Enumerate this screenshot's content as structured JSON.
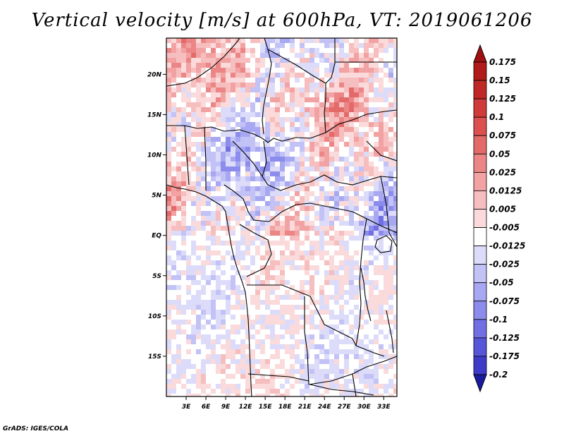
{
  "title": "Vertical velocity [m/s] at 600hPa, VT: 2019061206",
  "credit": "GrADS: IGES/COLA",
  "map": {
    "lon_range": [
      0,
      35
    ],
    "lat_range": [
      -20,
      24.5
    ],
    "lat_ticks": [
      {
        "value": 20,
        "label": "20N"
      },
      {
        "value": 15,
        "label": "15N"
      },
      {
        "value": 10,
        "label": "10N"
      },
      {
        "value": 5,
        "label": "5N"
      },
      {
        "value": 0,
        "label": "EQ"
      },
      {
        "value": -5,
        "label": "5S"
      },
      {
        "value": -10,
        "label": "10S"
      },
      {
        "value": -15,
        "label": "15S"
      }
    ],
    "lon_ticks": [
      {
        "value": 3,
        "label": "3E"
      },
      {
        "value": 6,
        "label": "6E"
      },
      {
        "value": 9,
        "label": "9E"
      },
      {
        "value": 12,
        "label": "12E"
      },
      {
        "value": 15,
        "label": "15E"
      },
      {
        "value": 18,
        "label": "18E"
      },
      {
        "value": 21,
        "label": "21E"
      },
      {
        "value": 24,
        "label": "24E"
      },
      {
        "value": 27,
        "label": "27E"
      },
      {
        "value": 30,
        "label": "30E"
      },
      {
        "value": 33,
        "label": "33E"
      }
    ]
  },
  "colorbar": {
    "levels": [
      {
        "label": "0.175",
        "color": "#b01a1a"
      },
      {
        "label": "0.15",
        "color": "#c02828"
      },
      {
        "label": "0.125",
        "color": "#d03a3a"
      },
      {
        "label": "0.1",
        "color": "#dc5050"
      },
      {
        "label": "0.075",
        "color": "#e46a6a"
      },
      {
        "label": "0.05",
        "color": "#ec8686"
      },
      {
        "label": "0.025",
        "color": "#f2a2a2"
      },
      {
        "label": "0.0125",
        "color": "#f6bebe"
      },
      {
        "label": "0.005",
        "color": "#fadada"
      },
      {
        "label": "-0.005",
        "color": "#ffffff"
      },
      {
        "label": "-0.0125",
        "color": "#dcdcfa"
      },
      {
        "label": "-0.025",
        "color": "#c2c2f6"
      },
      {
        "label": "-0.05",
        "color": "#a8a8f2"
      },
      {
        "label": "-0.075",
        "color": "#8c8cec"
      },
      {
        "label": "-0.1",
        "color": "#7070e4"
      },
      {
        "label": "-0.125",
        "color": "#5656d8"
      },
      {
        "label": "-0.175",
        "color": "#3c3cc8"
      },
      {
        "label": "-0.2",
        "color": "#2828b4"
      }
    ],
    "top_color": "#a01010",
    "bottom_color": "#1a1aa0"
  }
}
